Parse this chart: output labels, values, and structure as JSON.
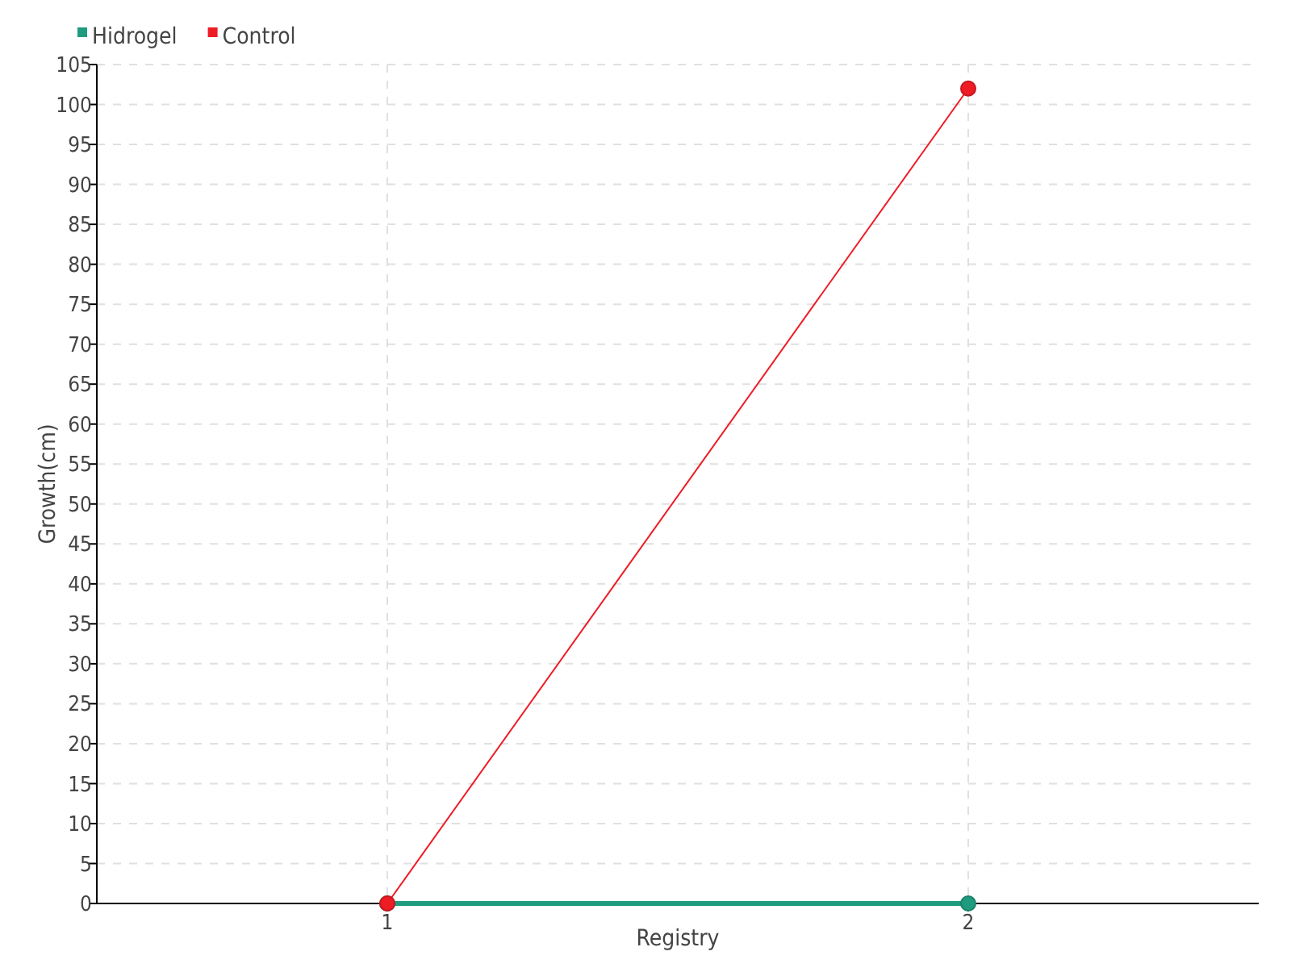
{
  "chart_data": {
    "type": "line",
    "xlabel": "Registry",
    "ylabel": "Growth(cm)",
    "x": [
      1,
      2
    ],
    "series": [
      {
        "name": "Hidrogel",
        "color": "#1f9b7f",
        "values": [
          0,
          0
        ]
      },
      {
        "name": "Control",
        "color": "#ee1c25",
        "values": [
          0,
          102
        ]
      }
    ],
    "xlim": [
      0.5,
      2.5
    ],
    "xticks": [
      1,
      2
    ],
    "ylim": [
      0,
      105
    ],
    "yticks": [
      0,
      5,
      10,
      15,
      20,
      25,
      30,
      35,
      40,
      45,
      50,
      55,
      60,
      65,
      70,
      75,
      80,
      85,
      90,
      95,
      100,
      105
    ],
    "grid": true,
    "legend": "top left",
    "marker": "circle"
  }
}
